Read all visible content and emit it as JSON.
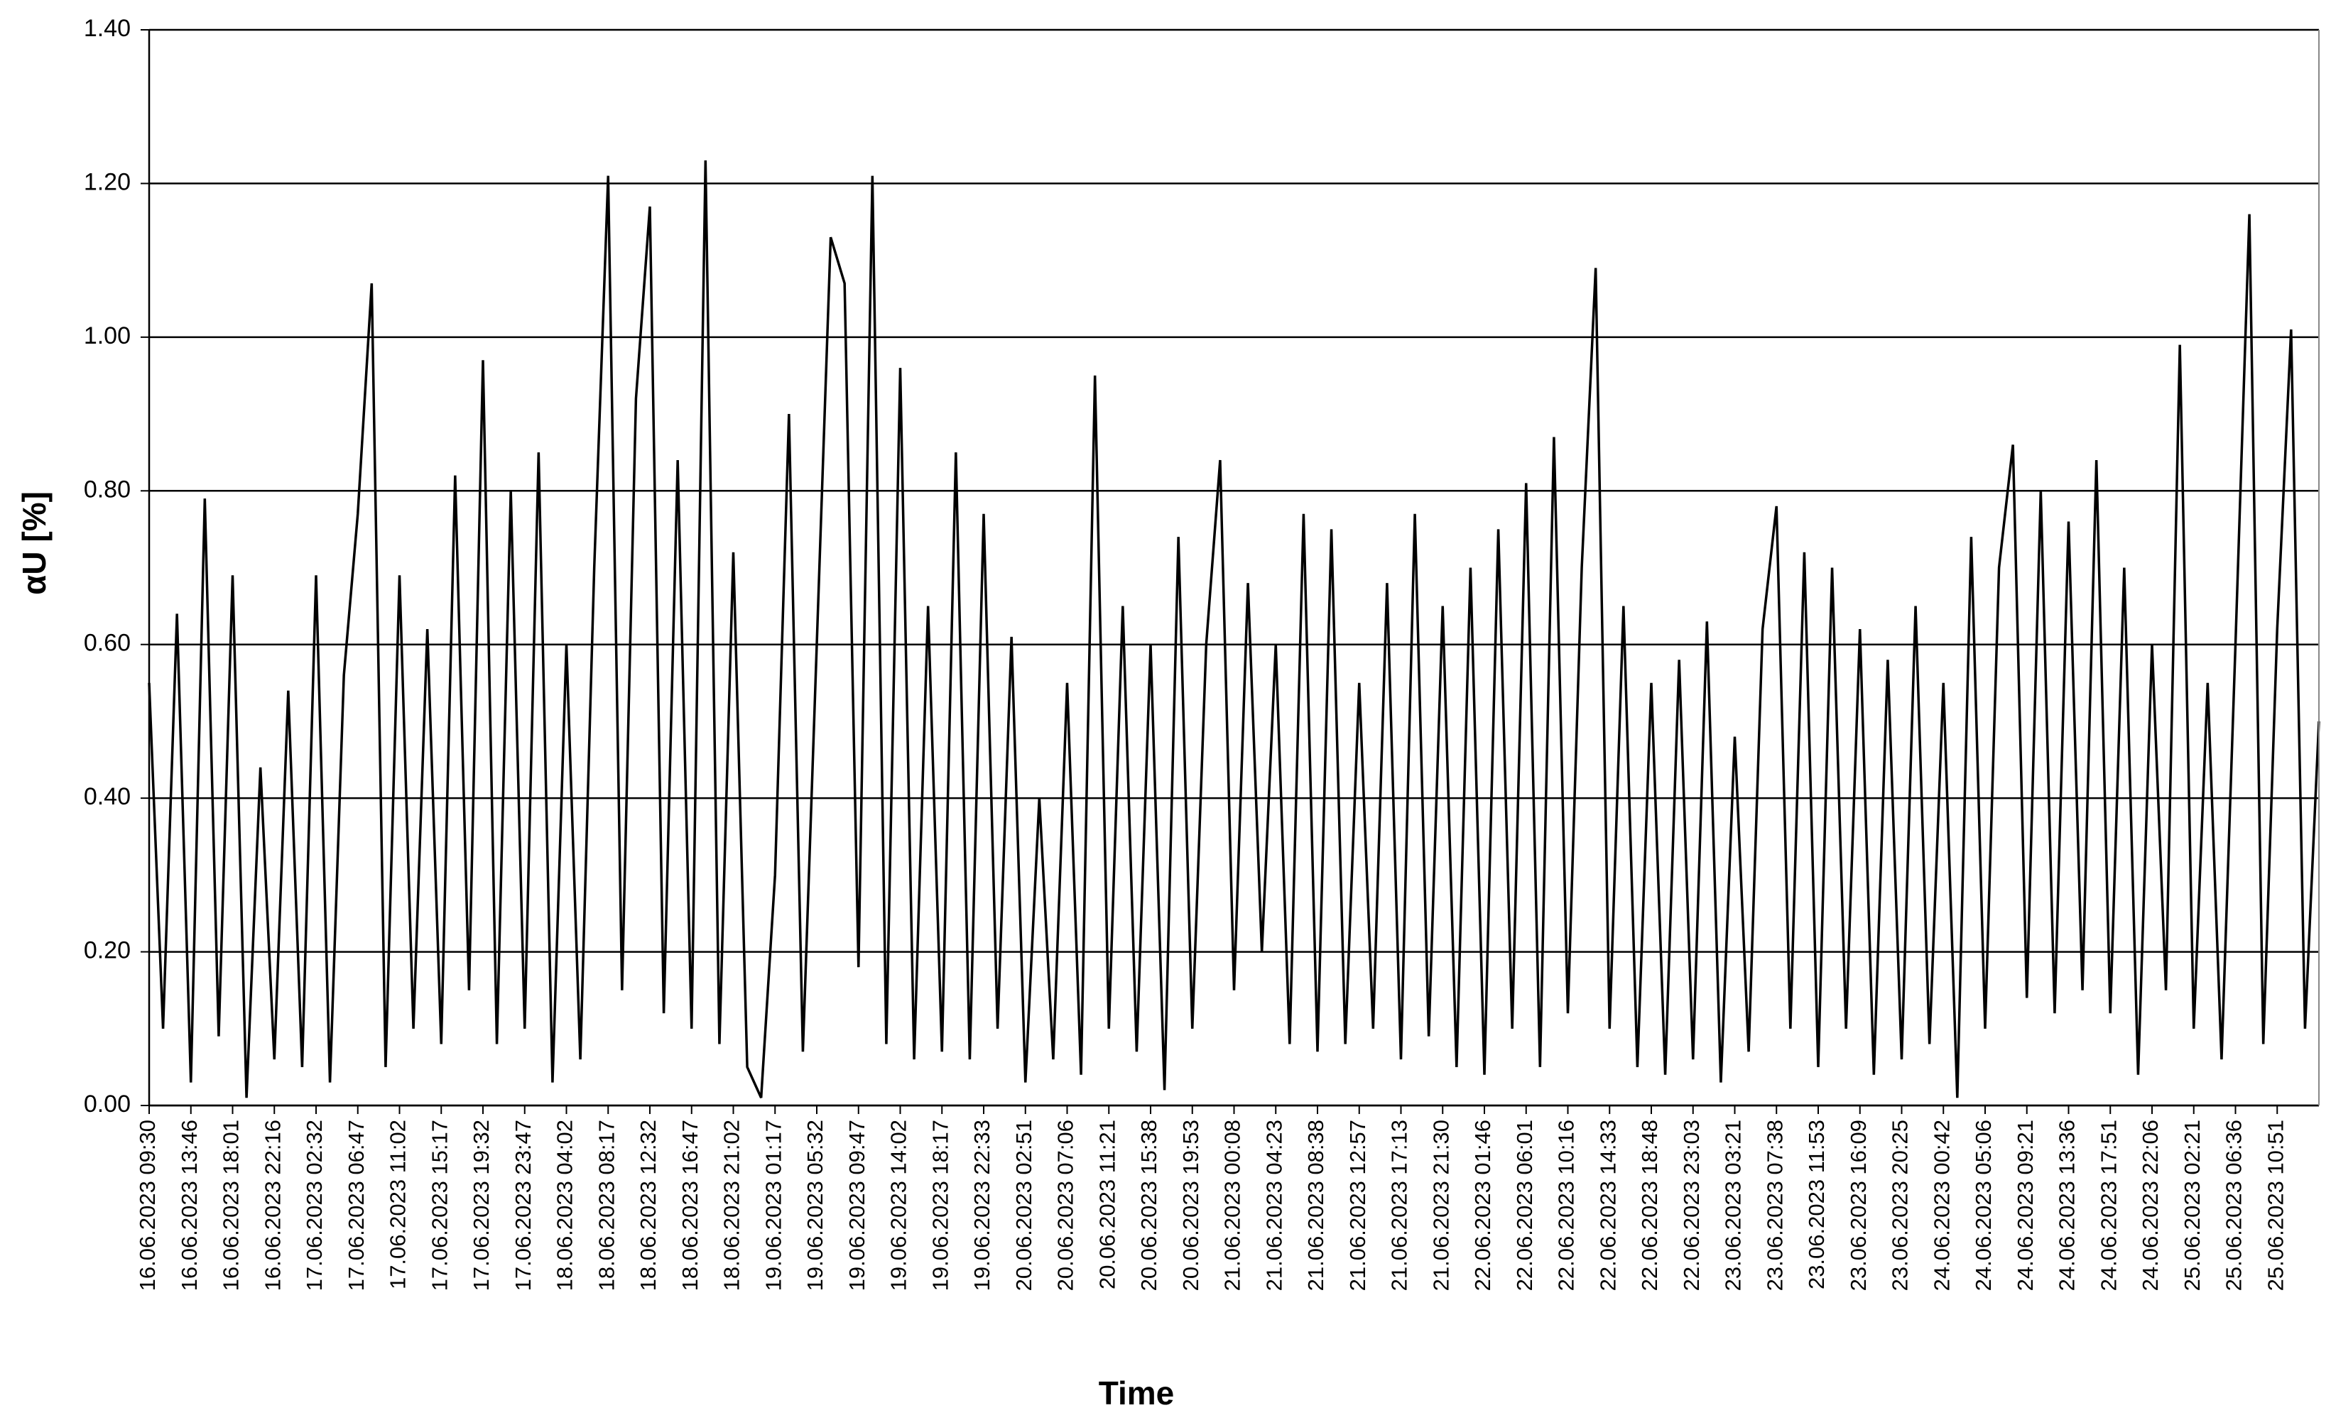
{
  "chart_data": {
    "type": "line",
    "y_label": "αU [%]",
    "x_label": "Time",
    "ylim": [
      0,
      1.4
    ],
    "yticks": [
      {
        "value": 0,
        "label": "0.00"
      },
      {
        "value": 0.2,
        "label": "0.20"
      },
      {
        "value": 0.4,
        "label": "0.40"
      },
      {
        "value": 0.6,
        "label": "0.60"
      },
      {
        "value": 0.8,
        "label": "0.80"
      },
      {
        "value": 1,
        "label": "1.00"
      },
      {
        "value": 1.2,
        "label": "1.20"
      },
      {
        "value": 1.4,
        "label": "1.40"
      }
    ],
    "grid": true,
    "color": "#000000",
    "categories": [
      "16.06.2023 09:30",
      null,
      null,
      "16.06.2023 13:46",
      null,
      null,
      "16.06.2023 18:01",
      null,
      null,
      "16.06.2023 22:16",
      null,
      null,
      "17.06.2023 02:32",
      null,
      null,
      "17.06.2023 06:47",
      null,
      null,
      "17.06.2023 11:02",
      null,
      null,
      "17.06.2023 15:17",
      null,
      null,
      "17.06.2023 19:32",
      null,
      null,
      "17.06.2023 23:47",
      null,
      null,
      "18.06.2023 04:02",
      null,
      null,
      "18.06.2023 08:17",
      null,
      null,
      "18.06.2023 12:32",
      null,
      null,
      "18.06.2023 16:47",
      null,
      null,
      "18.06.2023 21:02",
      null,
      null,
      "19.06.2023 01:17",
      null,
      null,
      "19.06.2023 05:32",
      null,
      null,
      "19.06.2023 09:47",
      null,
      null,
      "19.06.2023 14:02",
      null,
      null,
      "19.06.2023 18:17",
      null,
      null,
      "19.06.2023 22:33",
      null,
      null,
      "20.06.2023 02:51",
      null,
      null,
      "20.06.2023 07:06",
      null,
      null,
      "20.06.2023 11:21",
      null,
      null,
      "20.06.2023 15:38",
      null,
      null,
      "20.06.2023 19:53",
      null,
      null,
      "21.06.2023 00:08",
      null,
      null,
      "21.06.2023 04:23",
      null,
      null,
      "21.06.2023 08:38",
      null,
      null,
      "21.06.2023 12:57",
      null,
      null,
      "21.06.2023 17:13",
      null,
      null,
      "21.06.2023 21:30",
      null,
      null,
      "22.06.2023 01:46",
      null,
      null,
      "22.06.2023 06:01",
      null,
      null,
      "22.06.2023 10:16",
      null,
      null,
      "22.06.2023 14:33",
      null,
      null,
      "22.06.2023 18:48",
      null,
      null,
      "22.06.2023 23:03",
      null,
      null,
      "23.06.2023 03:21",
      null,
      null,
      "23.06.2023 07:38",
      null,
      null,
      "23.06.2023 11:53",
      null,
      null,
      "23.06.2023 16:09",
      null,
      null,
      "23.06.2023 20:25",
      null,
      null,
      "24.06.2023 00:42",
      null,
      null,
      "24.06.2023 05:06",
      null,
      null,
      "24.06.2023 09:21",
      null,
      null,
      "24.06.2023 13:36",
      null,
      null,
      "24.06.2023 17:51",
      null,
      null,
      "24.06.2023 22:06",
      null,
      null,
      "25.06.2023 02:21",
      null,
      null,
      "25.06.2023 06:36",
      null,
      null,
      "25.06.2023 10:51",
      null,
      null,
      null
    ],
    "values": [
      0.55,
      0.1,
      0.64,
      0.03,
      0.79,
      0.09,
      0.69,
      0.01,
      0.44,
      0.06,
      0.54,
      0.05,
      0.69,
      0.03,
      0.56,
      0.77,
      1.07,
      0.05,
      0.69,
      0.1,
      0.62,
      0.08,
      0.82,
      0.15,
      0.97,
      0.08,
      0.8,
      0.1,
      0.85,
      0.03,
      0.6,
      0.06,
      0.7,
      1.21,
      0.15,
      0.92,
      1.17,
      0.12,
      0.84,
      0.1,
      1.23,
      0.08,
      0.72,
      0.05,
      0.01,
      0.3,
      0.9,
      0.07,
      0.6,
      1.13,
      1.07,
      0.18,
      1.21,
      0.08,
      0.96,
      0.06,
      0.65,
      0.07,
      0.85,
      0.06,
      0.77,
      0.1,
      0.61,
      0.03,
      0.4,
      0.06,
      0.55,
      0.04,
      0.95,
      0.1,
      0.65,
      0.07,
      0.6,
      0.02,
      0.74,
      0.1,
      0.6,
      0.84,
      0.15,
      0.68,
      0.2,
      0.6,
      0.08,
      0.77,
      0.07,
      0.75,
      0.08,
      0.55,
      0.1,
      0.68,
      0.06,
      0.77,
      0.09,
      0.65,
      0.05,
      0.7,
      0.04,
      0.75,
      0.1,
      0.81,
      0.05,
      0.87,
      0.12,
      0.7,
      1.09,
      0.1,
      0.65,
      0.05,
      0.55,
      0.04,
      0.58,
      0.06,
      0.63,
      0.03,
      0.48,
      0.07,
      0.62,
      0.78,
      0.1,
      0.72,
      0.05,
      0.7,
      0.1,
      0.62,
      0.04,
      0.58,
      0.06,
      0.65,
      0.08,
      0.55,
      0.01,
      0.74,
      0.1,
      0.7,
      0.86,
      0.14,
      0.8,
      0.12,
      0.76,
      0.15,
      0.84,
      0.12,
      0.7,
      0.04,
      0.6,
      0.15,
      0.99,
      0.1,
      0.55,
      0.06,
      0.6,
      1.16,
      0.08,
      0.62,
      1.01,
      0.1,
      0.5
    ]
  }
}
